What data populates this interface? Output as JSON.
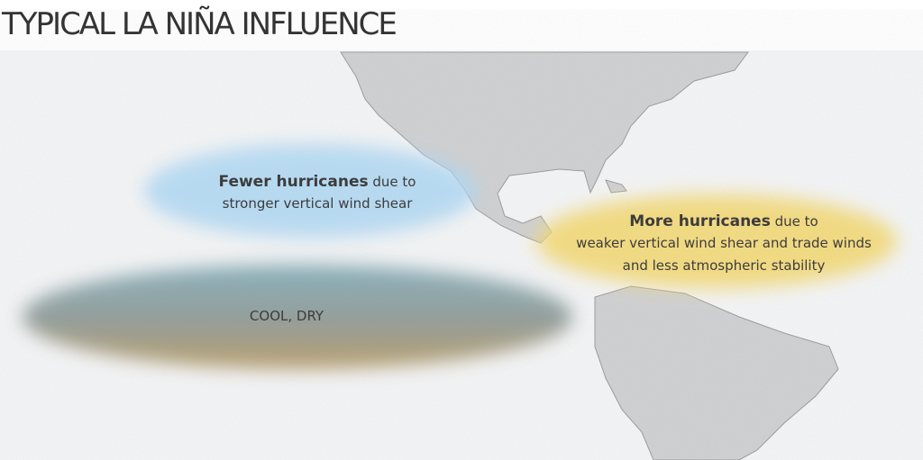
{
  "title": "TYPICAL LA NIÑA INFLUENCE",
  "annotations": [
    {
      "bold": "Fewer hurricanes",
      "rest": " due to",
      "line2": "stronger vertical wind shear"
    },
    {
      "bold": "More hurricanes",
      "rest": " due to",
      "line2": "weaker vertical wind shear and trade winds",
      "line3": "and less atmospheric stability"
    },
    {
      "label": "COOL, DRY"
    }
  ]
}
